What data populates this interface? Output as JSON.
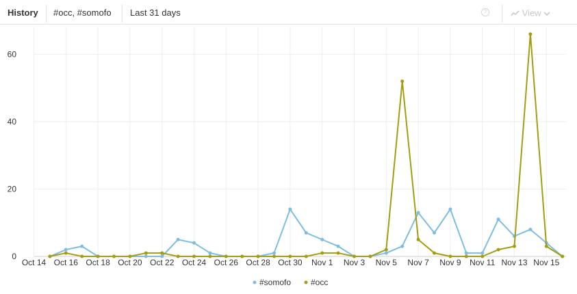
{
  "header": {
    "title": "History",
    "terms": "#occ, #somofo",
    "range": "Last 31 days",
    "view_label": "View"
  },
  "colors": {
    "somofo": "#7dbde2",
    "occ": "#a39d0f",
    "grid": "#eeeeee"
  },
  "chart_data": {
    "type": "line",
    "x": [
      "Oct 14",
      "Oct 15",
      "Oct 16",
      "Oct 17",
      "Oct 18",
      "Oct 19",
      "Oct 20",
      "Oct 21",
      "Oct 22",
      "Oct 23",
      "Oct 24",
      "Oct 25",
      "Oct 26",
      "Oct 27",
      "Oct 28",
      "Oct 29",
      "Oct 30",
      "Oct 31",
      "Nov 1",
      "Nov 2",
      "Nov 3",
      "Nov 4",
      "Nov 5",
      "Nov 6",
      "Nov 7",
      "Nov 8",
      "Nov 9",
      "Nov 10",
      "Nov 11",
      "Nov 12",
      "Nov 13",
      "Nov 14",
      "Nov 15"
    ],
    "x_tick_labels": [
      "Oct 14",
      "Oct 16",
      "Oct 18",
      "Oct 20",
      "Oct 22",
      "Oct 24",
      "Oct 26",
      "Oct 28",
      "Oct 30",
      "Nov 1",
      "Nov 3",
      "Nov 5",
      "Nov 7",
      "Nov 9",
      "Nov 11",
      "Nov 13",
      "Nov 15"
    ],
    "y_tick_labels": [
      "0",
      "20",
      "40",
      "60"
    ],
    "ylim": [
      0,
      68
    ],
    "grid": true,
    "legend_position": "bottom",
    "series": [
      {
        "name": "#somofo",
        "color": "#7dbde2",
        "start_index": 1,
        "values": [
          0,
          2,
          3,
          0,
          0,
          0,
          0,
          0,
          5,
          4,
          1,
          0,
          0,
          0,
          1,
          14,
          7,
          5,
          3,
          0,
          0,
          1,
          3,
          13,
          7,
          14,
          1,
          1,
          11,
          6,
          8,
          4,
          0
        ]
      },
      {
        "name": "#occ",
        "color": "#a39d0f",
        "start_index": 1,
        "values": [
          0,
          1,
          0,
          0,
          0,
          0,
          1,
          1,
          0,
          0,
          0,
          0,
          0,
          0,
          0,
          0,
          0,
          1,
          1,
          0,
          0,
          2,
          52,
          5,
          1,
          0,
          0,
          0,
          2,
          3,
          66,
          3,
          0
        ]
      }
    ]
  }
}
